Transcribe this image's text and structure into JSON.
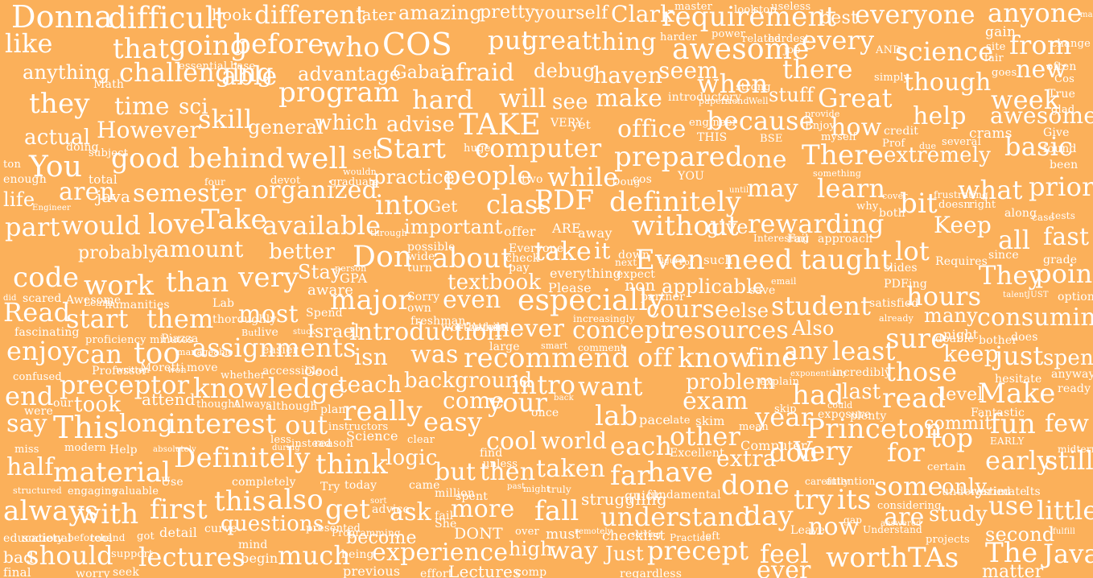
{
  "background_color": "#fbb05a",
  "text_color": "#ffffff",
  "words": [
    "Donna",
    "difficult",
    "book",
    "different",
    "later",
    "amazing",
    "pretty",
    "yourself",
    "Clark",
    "requirement",
    "best",
    "everyone",
    "anyone",
    "like",
    "that",
    "going",
    "before",
    "who",
    "COS",
    "put",
    "great",
    "thing",
    "awesome",
    "every",
    "science",
    "from",
    "anything",
    "challenging",
    "able",
    "advantage",
    "Gabai",
    "afraid",
    "debug",
    "haven",
    "seem",
    "there",
    "though",
    "new",
    "they",
    "time",
    "sci",
    "skill",
    "program",
    "hard",
    "will",
    "see",
    "make",
    "when",
    "stuff",
    "Great",
    "week",
    "However",
    "general",
    "which",
    "advise",
    "TAKE",
    "office",
    "because",
    "how",
    "help",
    "awesome",
    "actual",
    "good",
    "behind",
    "well",
    "set",
    "Start",
    "computer",
    "prepared",
    "one",
    "There",
    "extremely",
    "basic",
    "You",
    "aren",
    "semester",
    "organized",
    "practice",
    "people",
    "while",
    "may",
    "learn",
    "what",
    "prior",
    "life",
    "java",
    "into",
    "Get",
    "class",
    "PDF",
    "definitely",
    "bit",
    "would",
    "love",
    "Take",
    "available",
    "important",
    "without",
    "give",
    "rewarding",
    "all",
    "fast",
    "part",
    "amount",
    "better",
    "Don",
    "about",
    "take",
    "it",
    "Even",
    "need",
    "taught",
    "lot",
    "Keep",
    "probably",
    "code",
    "work",
    "than",
    "very",
    "Stay",
    "especially",
    "non",
    "applicable",
    "student",
    "hours",
    "They",
    "point",
    "Read",
    "start",
    "them",
    "most",
    "major",
    "textbook",
    "even",
    "course",
    "else",
    "resources",
    "Also",
    "sure",
    "many",
    "consuming",
    "enjoy",
    "can",
    "too",
    "assignments",
    "introduction",
    "isn",
    "was",
    "never",
    "concept",
    "recommend",
    "off",
    "know",
    "fine",
    "any",
    "least",
    "keep",
    "just",
    "spend",
    "preceptor",
    "knowledge",
    "teach",
    "background",
    "intro",
    "want",
    "problem",
    "exam",
    "those",
    "end",
    "took",
    "attend",
    "come",
    "really",
    "your",
    "lab",
    "had",
    "last",
    "read",
    "Make",
    "level",
    "say",
    "This",
    "long",
    "interest",
    "out",
    "easy",
    "year",
    "Princeton",
    "commit",
    "fun",
    "few",
    "half",
    "material",
    "Definitely",
    "think",
    "logic",
    "cool",
    "world",
    "each",
    "other",
    "extra",
    "don",
    "Very",
    "for",
    "top",
    "always",
    "with",
    "first",
    "this",
    "also",
    "get",
    "but",
    "then",
    "taken",
    "far",
    "have",
    "done",
    "try",
    "its",
    "some",
    "only",
    "early",
    "still",
    "ask",
    "more",
    "fall",
    "understand",
    "day",
    "are",
    "study",
    "use",
    "little",
    "questions",
    "much",
    "Lectures",
    "experience",
    "high",
    "way",
    "Just",
    "precept",
    "feel",
    "now",
    "worth",
    "TAs",
    "The",
    "Java",
    "lectures",
    "should",
    "ever",
    "matter",
    "second",
    "master",
    "useless",
    "stop",
    "look",
    "power",
    "harder",
    "related",
    "hardest",
    "essential",
    "base",
    "job",
    "gain",
    "site",
    "change",
    "fair",
    "AND",
    "goes",
    "simply",
    "often",
    "Cos",
    "True",
    "glad",
    "Give",
    "found",
    "been",
    "math",
    "Math",
    "strong",
    "introductory",
    "papers",
    "friend",
    "Well",
    "provide",
    "Enjoy",
    "myself",
    "credit",
    "several",
    "due",
    "crams",
    "Prof",
    "BSE",
    "THIS",
    "engineer",
    "VERY",
    "yet",
    "huge",
    "doing",
    "subject",
    "ton",
    "enough",
    "total",
    "two",
    "cos",
    "Doug",
    "YOU",
    "until",
    "something",
    "devot",
    "graduate",
    "wouldn",
    "four",
    "Engineer",
    "cover",
    "frustrating",
    "doesn",
    "right",
    "along",
    "case",
    "tests",
    "why",
    "both",
    "ARE",
    "away",
    "offer",
    "through",
    "possible",
    "wide",
    "turn",
    "Everyone",
    "check",
    "pay",
    "down",
    "such",
    "next",
    "figure",
    "For",
    "Fail",
    "approach",
    "Interesting",
    "person",
    "aware",
    "GPA",
    "Sorry",
    "own",
    "everything",
    "Please",
    "partner",
    "expect",
    "save",
    "email",
    "Requires",
    "slides",
    "PDFing",
    "grade",
    "since",
    "did",
    "scared",
    "Awesome",
    "Learn",
    "humanities",
    "Lab",
    "thoroughly",
    "Spend",
    "Israel",
    "But",
    "live",
    "stuck",
    "freshman",
    "worthwhile",
    "Attend",
    "increasingly",
    "satisfied",
    "already",
    "night",
    "does",
    "option",
    "talent",
    "JUST",
    "fascinating",
    "proficiency",
    "minutes",
    "Piazza",
    "manageable",
    "easier",
    "large",
    "smart",
    "comment",
    "doable",
    "bother",
    "confused",
    "Professor",
    "written",
    "Moretti",
    "won",
    "move",
    "whether",
    "accessible",
    "Good",
    "explain",
    "exponentially",
    "incredibly",
    "hesitate",
    "anyway",
    "ready",
    "our",
    "were",
    "thought",
    "Always",
    "although",
    "plan",
    "back",
    "once",
    "pace",
    "late",
    "skim",
    "mean",
    "skip",
    "could",
    "exposure",
    "plenty",
    "Fantastic",
    "EARLY",
    "instructors",
    "Science",
    "clear",
    "miss",
    "modern",
    "Help",
    "absolutely",
    "less",
    "during",
    "instead",
    "reason",
    "find",
    "unless",
    "Excellent",
    "Computer",
    "midterm",
    "structured",
    "engaging",
    "valuable",
    "Use",
    "completely",
    "Try",
    "today",
    "came",
    "million",
    "spent",
    "past",
    "might",
    "truly",
    "struggling",
    "quick",
    "fundamental",
    "carefully",
    "attention",
    "certain",
    "underestimate",
    "varied",
    "Its",
    "advice",
    "sort",
    "fail",
    "She",
    "curve",
    "detail",
    "educational",
    "society",
    "beforehand",
    "tool",
    "got",
    "presented",
    "Programming",
    "become",
    "DONT",
    "over",
    "must",
    "remotely",
    "checklist",
    "solving",
    "Practice",
    "left",
    "Leave",
    "gap",
    "Understand",
    "considering",
    "answered",
    "projects",
    "fulfill",
    "support",
    "mind",
    "begin",
    "bad",
    "final",
    "worry",
    "seek",
    "being",
    "previous",
    "effort",
    "comp",
    "regardless",
    "now"
  ]
}
